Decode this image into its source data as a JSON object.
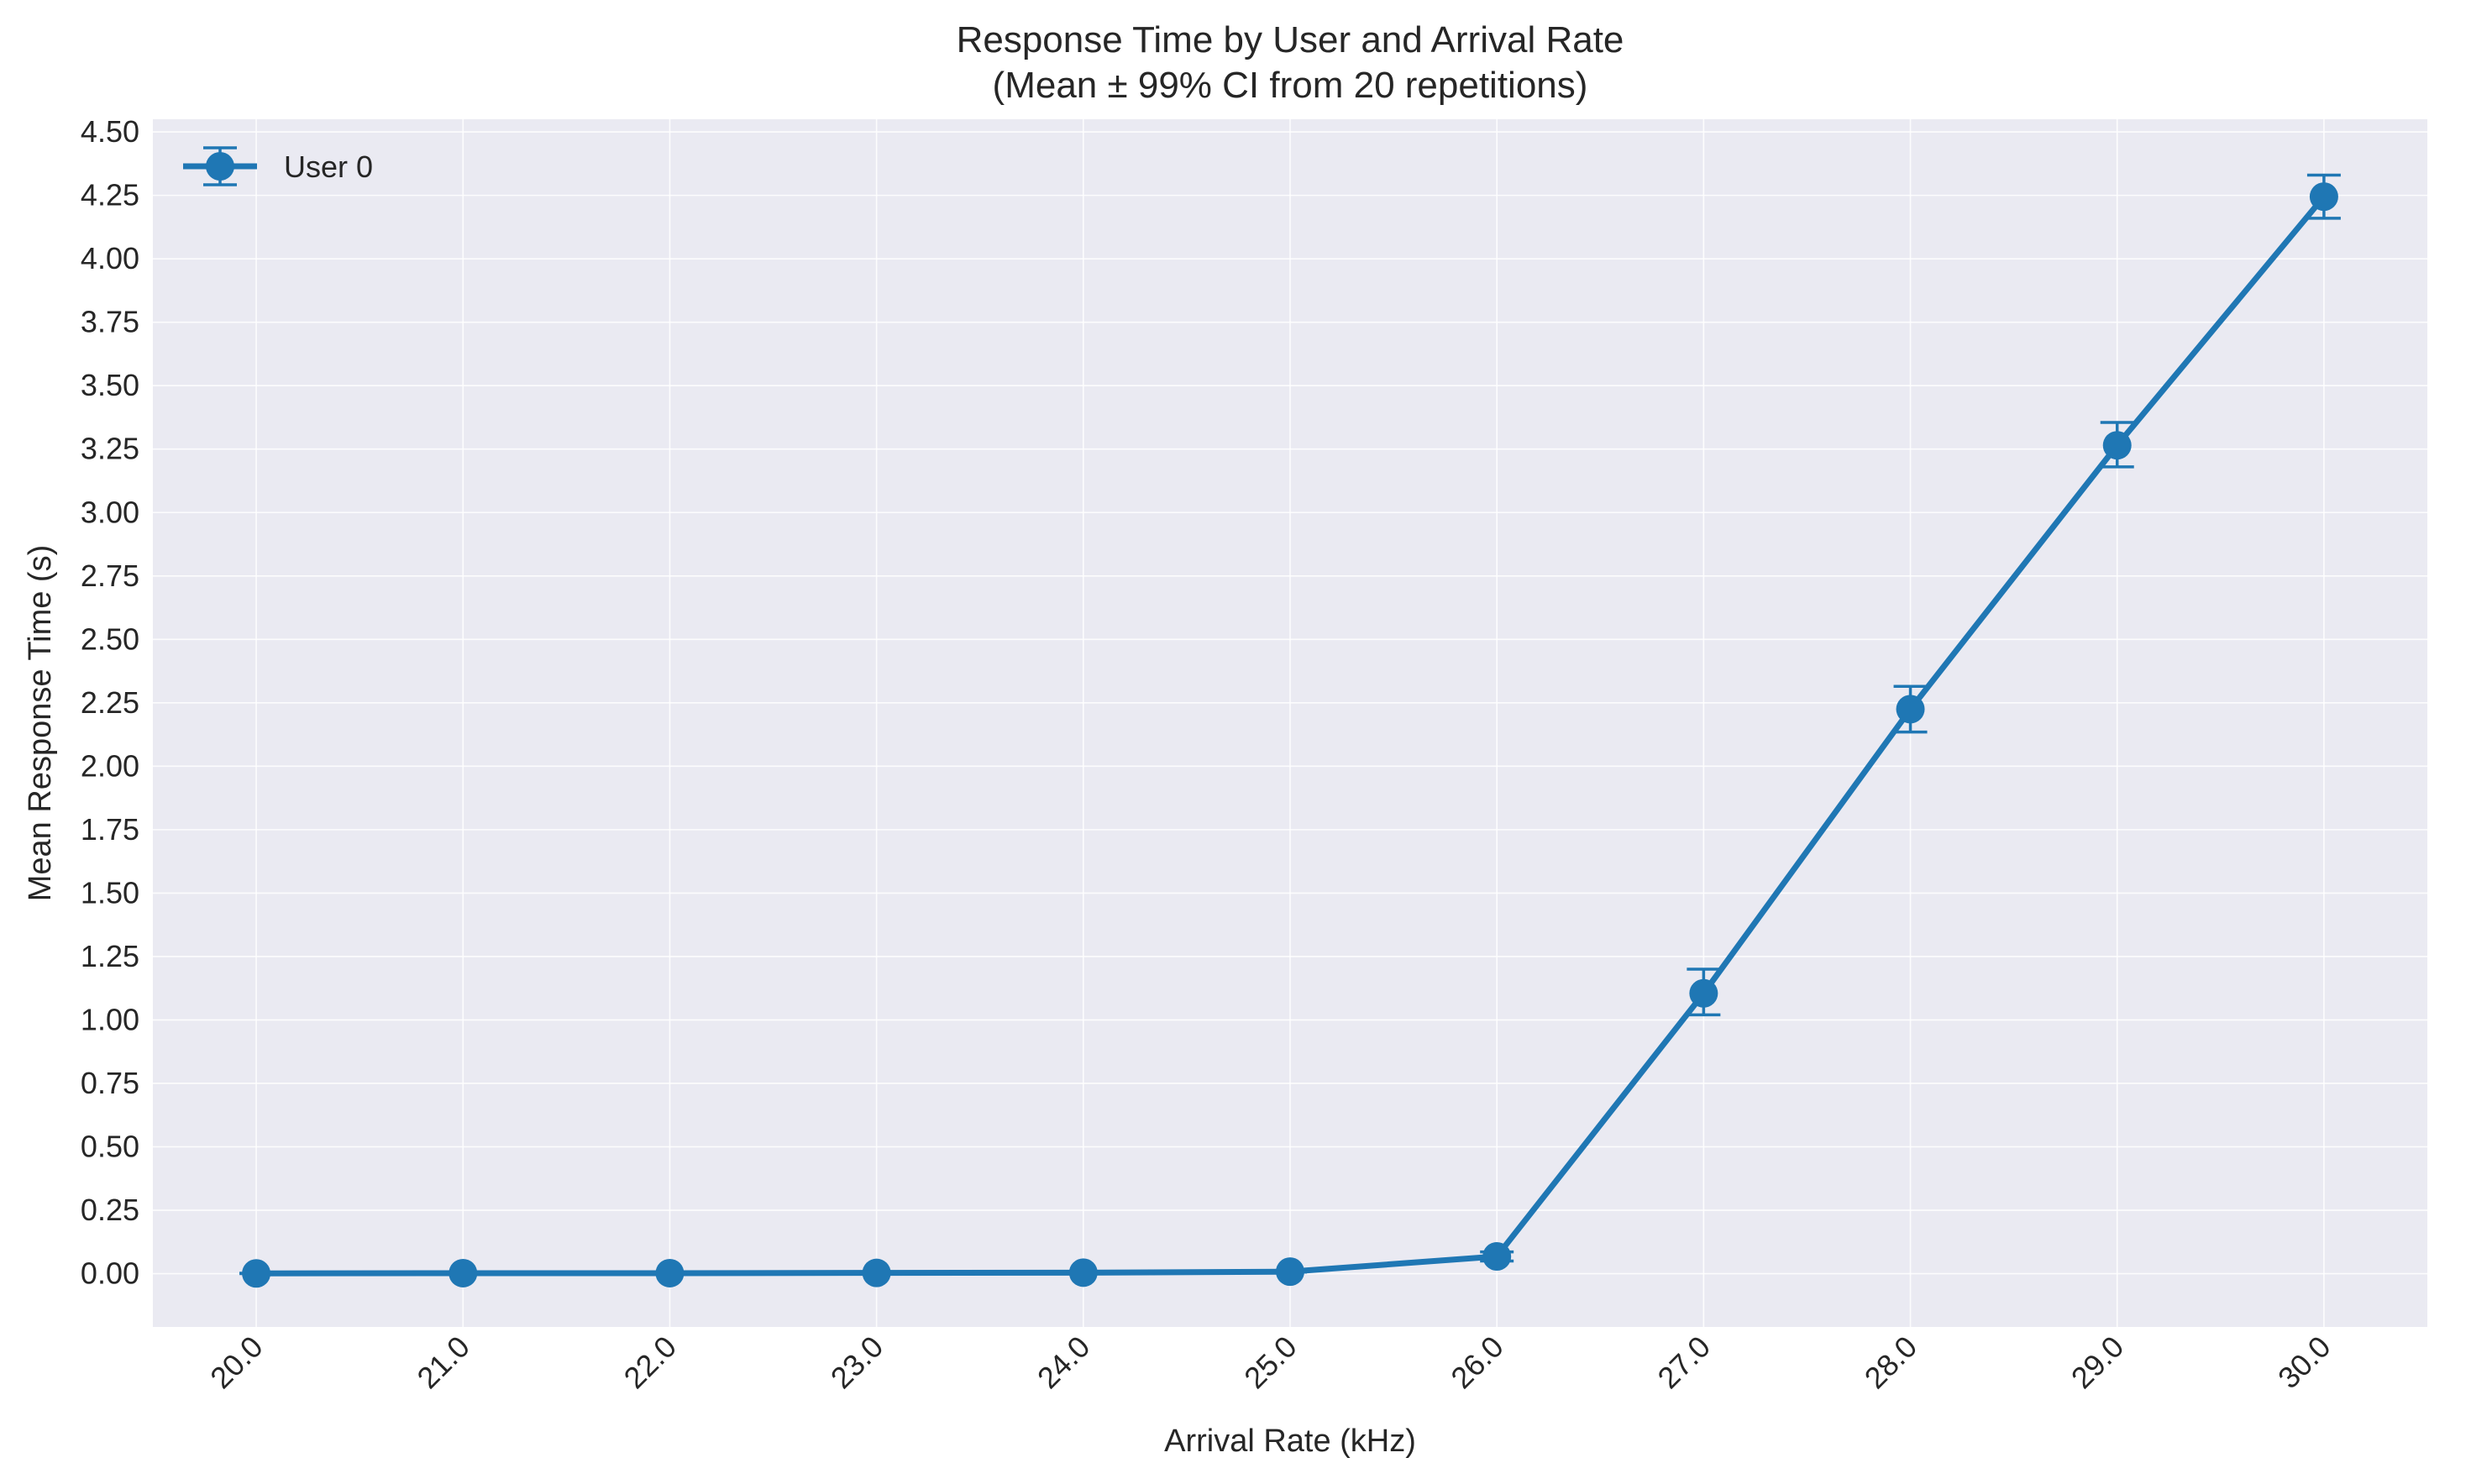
{
  "chart_data": {
    "type": "line",
    "title": "Response Time by User and Arrival Rate",
    "subtitle": "(Mean ± 99% CI from 20 repetitions)",
    "xlabel": "Arrival Rate (kHz)",
    "ylabel": "Mean Response Time (s)",
    "x": [
      20.0,
      21.0,
      22.0,
      23.0,
      24.0,
      25.0,
      26.0,
      27.0,
      28.0,
      29.0,
      30.0
    ],
    "x_tick_labels": [
      "20.0",
      "21.0",
      "22.0",
      "23.0",
      "24.0",
      "25.0",
      "26.0",
      "27.0",
      "28.0",
      "29.0",
      "30.0"
    ],
    "y_ticks": [
      0.0,
      0.25,
      0.5,
      0.75,
      1.0,
      1.25,
      1.5,
      1.75,
      2.0,
      2.25,
      2.5,
      2.75,
      3.0,
      3.25,
      3.5,
      3.75,
      4.0,
      4.25,
      4.5
    ],
    "y_tick_labels": [
      "0.00",
      "0.25",
      "0.50",
      "0.75",
      "1.00",
      "1.25",
      "1.50",
      "1.75",
      "2.00",
      "2.25",
      "2.50",
      "2.75",
      "3.00",
      "3.25",
      "3.50",
      "3.75",
      "4.00",
      "4.25",
      "4.50"
    ],
    "xlim": [
      19.5,
      30.5
    ],
    "ylim": [
      -0.21,
      4.55
    ],
    "grid": true,
    "legend_position": "top-left",
    "series": [
      {
        "name": "User 0",
        "color": "#1f77b4",
        "values": [
          0.001,
          0.002,
          0.002,
          0.003,
          0.004,
          0.008,
          0.068,
          1.105,
          2.225,
          3.265,
          4.245
        ],
        "ci_low": [
          0.0,
          0.001,
          0.001,
          0.002,
          0.003,
          0.006,
          0.05,
          1.02,
          2.135,
          3.18,
          4.16
        ],
        "ci_high": [
          0.002,
          0.003,
          0.003,
          0.004,
          0.005,
          0.01,
          0.086,
          1.2,
          2.315,
          3.355,
          4.33
        ]
      }
    ]
  }
}
